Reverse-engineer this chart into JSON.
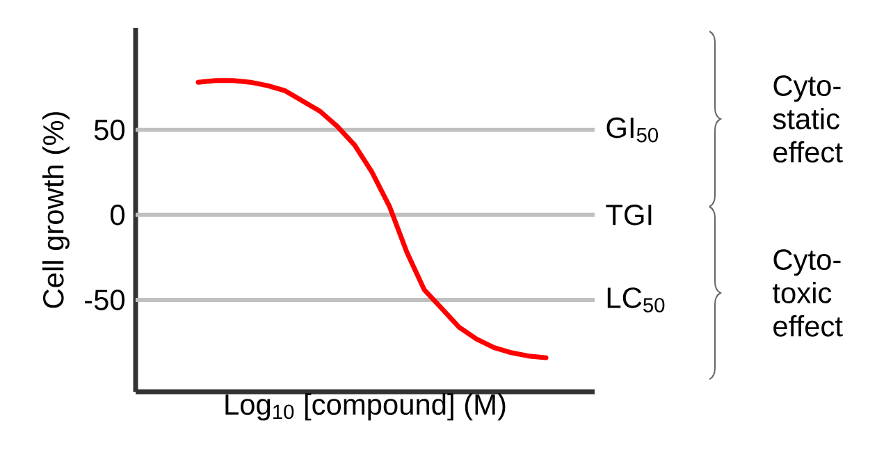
{
  "chart_data": {
    "type": "line",
    "xlabel": "Log$_{10}$ [compound] (M)",
    "ylabel": "Cell growth (%)",
    "categories": [
      null,
      null,
      null,
      null,
      null,
      null,
      null,
      null,
      null,
      null,
      null,
      null,
      null,
      null,
      null,
      null,
      null,
      null,
      null,
      null,
      null
    ],
    "series": [
      {
        "color": "#ff0000",
        "values": [
          78,
          79,
          79,
          78,
          76,
          73,
          67,
          61,
          52,
          41,
          25,
          5,
          -22,
          -44,
          -55,
          -66,
          -73,
          -78,
          -81,
          -83,
          -84
        ]
      }
    ],
    "ylim": [
      -104,
      110
    ],
    "yticks": [
      -50,
      0,
      50
    ],
    "tick_labels": "y",
    "marker": "none",
    "line_style": "solid",
    "ref_lines": [
      {
        "axis": "y",
        "value": 50,
        "label": "GI$_{50}$",
        "color": "#c0c0c0"
      },
      {
        "axis": "y",
        "value": 0,
        "label": "TGI",
        "color": "#c0c0c0"
      },
      {
        "axis": "y",
        "value": -50,
        "label": "LC$_{50}$",
        "color": "#c0c0c0"
      }
    ],
    "annotations": [
      "Cyto-static effect",
      "Cyto-toxic effect"
    ]
  }
}
